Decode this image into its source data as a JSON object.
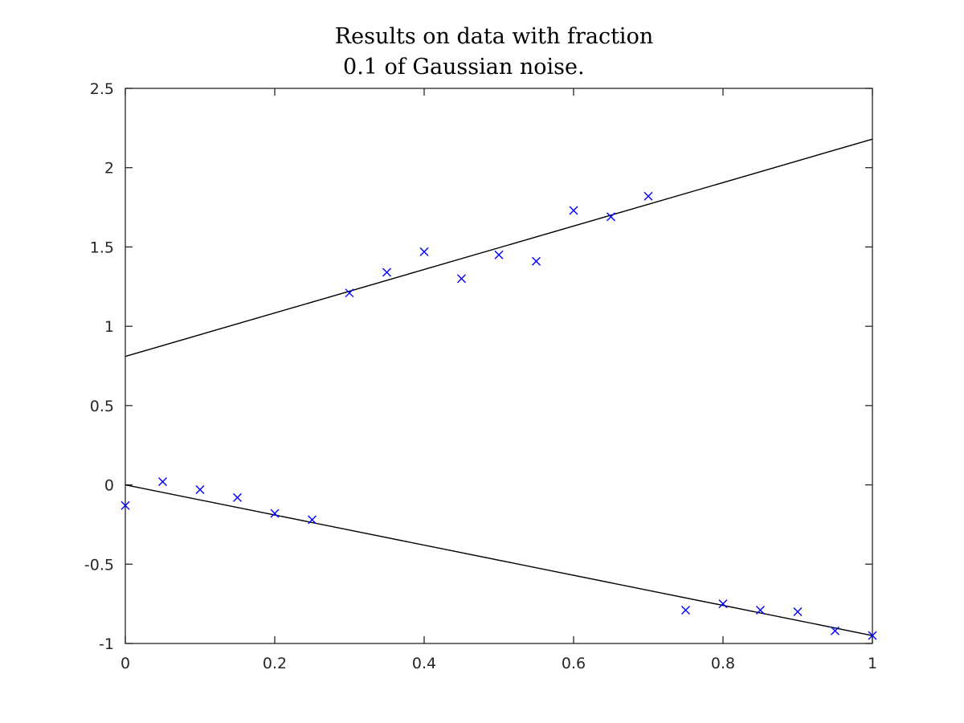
{
  "chart_data": {
    "type": "scatter",
    "title_lines": [
      "Results on data with fraction",
      " 0.1 of Gaussian noise."
    ],
    "xlabel": "",
    "ylabel": "",
    "xlim": [
      0,
      1
    ],
    "ylim": [
      -1,
      2.5
    ],
    "x_ticks": [
      0,
      0.2,
      0.4,
      0.6,
      0.8,
      1
    ],
    "x_tick_labels": [
      "0",
      "0.2",
      "0.4",
      "0.6",
      "0.8",
      "1"
    ],
    "y_ticks": [
      -1,
      -0.5,
      0,
      0.5,
      1,
      1.5,
      2,
      2.5
    ],
    "y_tick_labels": [
      "-1",
      "-0.5",
      "0",
      "0.5",
      "1",
      "1.5",
      "2",
      "2.5"
    ],
    "grid": false,
    "legend": "none",
    "marker_color": "#0000ff",
    "line_color": "#000000",
    "points": [
      [
        0,
        -0.13
      ],
      [
        0.05,
        0.02
      ],
      [
        0.1,
        -0.03
      ],
      [
        0.15,
        -0.08
      ],
      [
        0.2,
        -0.18
      ],
      [
        0.25,
        -0.22
      ],
      [
        0.3,
        1.21
      ],
      [
        0.35,
        1.34
      ],
      [
        0.4,
        1.47
      ],
      [
        0.45,
        1.3
      ],
      [
        0.5,
        1.45
      ],
      [
        0.55,
        1.41
      ],
      [
        0.6,
        1.73
      ],
      [
        0.65,
        1.69
      ],
      [
        0.7,
        1.82
      ],
      [
        0.75,
        -0.79
      ],
      [
        0.8,
        -0.75
      ],
      [
        0.85,
        -0.79
      ],
      [
        0.9,
        -0.8
      ],
      [
        0.95,
        -0.92
      ],
      [
        1.0,
        -0.95
      ]
    ],
    "fit_lines": [
      {
        "x": [
          0,
          1
        ],
        "y": [
          0.81,
          2.18
        ]
      },
      {
        "x": [
          0,
          1
        ],
        "y": [
          0.0,
          -0.95
        ]
      }
    ]
  }
}
